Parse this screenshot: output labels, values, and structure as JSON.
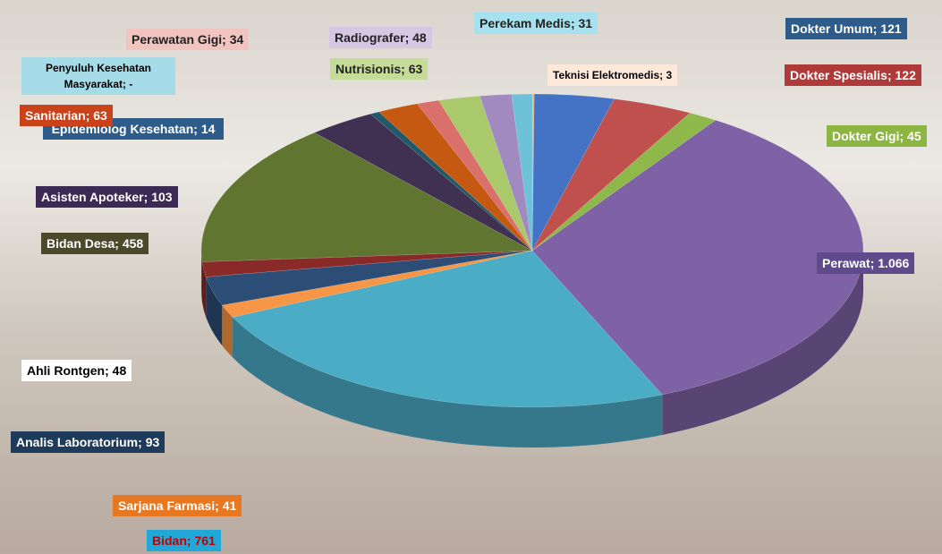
{
  "chart_data": {
    "type": "pie3d",
    "categories": [
      "Teknisi Elektromedis",
      "Dokter Umum",
      "Dokter Spesialis",
      "Dokter Gigi",
      "Perawat",
      "Bidan",
      "Sarjana Farmasi",
      "Analis Laboratorium",
      "Ahli Rontgen",
      "Bidan Desa",
      "Asisten Apoteker",
      "Epidemiolog Kesehatan",
      "Sanitarian",
      "Penyuluh Kesehatan Masyarakat",
      "Perawatan Gigi",
      "Nutrisionis",
      "Radiografer",
      "Perekam Medis"
    ],
    "values": [
      3,
      121,
      122,
      45,
      1066,
      761,
      41,
      93,
      48,
      458,
      103,
      14,
      63,
      null,
      34,
      63,
      48,
      31
    ],
    "value_labels": [
      "3",
      "121",
      "122",
      "45",
      "1.066",
      "761",
      "41",
      "93",
      "48",
      "458",
      "103",
      "14",
      "63",
      "-",
      "34",
      "63",
      "48",
      "31"
    ],
    "label_separator": ";",
    "colors": [
      "#f4b183",
      "#4472c4",
      "#c0504d",
      "#8fb84a",
      "#7f62a6",
      "#4bacc6",
      "#f79646",
      "#2c4d75",
      "#8a2a28",
      "#5f7530",
      "#403152",
      "#215968",
      "#c65911",
      "#8eb4e3",
      "#d9706b",
      "#a9c96b",
      "#a08ac0",
      "#6dc2d8"
    ]
  }
}
